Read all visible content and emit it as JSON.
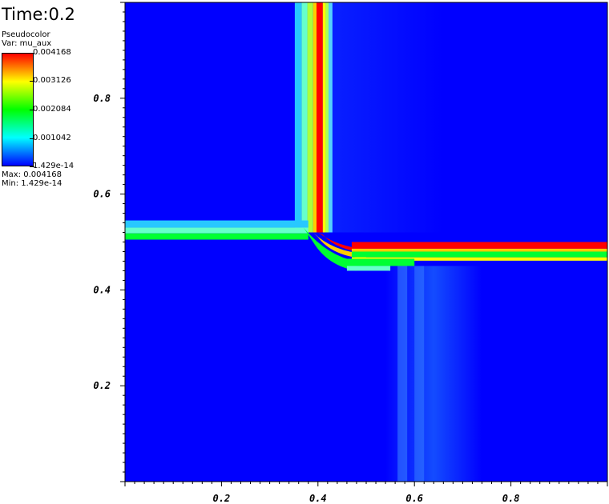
{
  "time_label": "Time:0.2",
  "legend": {
    "title": "Pseudocolor",
    "var": "Var: mu_aux",
    "ticks": [
      "0.004168",
      "0.003126",
      "0.002084",
      "0.001042",
      "1.429e-14"
    ],
    "max": "Max: 0.004168",
    "min": "Min: 1.429e-14",
    "colormap": [
      "#ff0000",
      "#ffff00",
      "#00ff00",
      "#00ffff",
      "#0000ff"
    ]
  },
  "chart_data": {
    "type": "heatmap",
    "title": "",
    "xlabel": "",
    "ylabel": "",
    "xlim": [
      0,
      1
    ],
    "ylim": [
      0,
      1
    ],
    "xticks": [
      "0.2",
      "0.4",
      "0.6",
      "0.8"
    ],
    "yticks": [
      "0.2",
      "0.4",
      "0.6",
      "0.8"
    ],
    "background_color": "#0000ff",
    "features": [
      {
        "description": "vertical band",
        "x_range": [
          0.35,
          0.42
        ],
        "y_range": [
          0.52,
          1.0
        ],
        "peak": 0.004168
      },
      {
        "description": "left horizontal band",
        "x_range": [
          0.0,
          0.38
        ],
        "y_range": [
          0.5,
          0.54
        ],
        "peak": 0.002084
      },
      {
        "description": "right horizontal band",
        "x_range": [
          0.45,
          1.0
        ],
        "y_range": [
          0.46,
          0.5
        ],
        "peak": 0.004168
      },
      {
        "description": "diffuse lower column",
        "x_range": [
          0.55,
          0.73
        ],
        "y_range": [
          0.0,
          0.45
        ],
        "peak": 0.0008
      }
    ]
  }
}
